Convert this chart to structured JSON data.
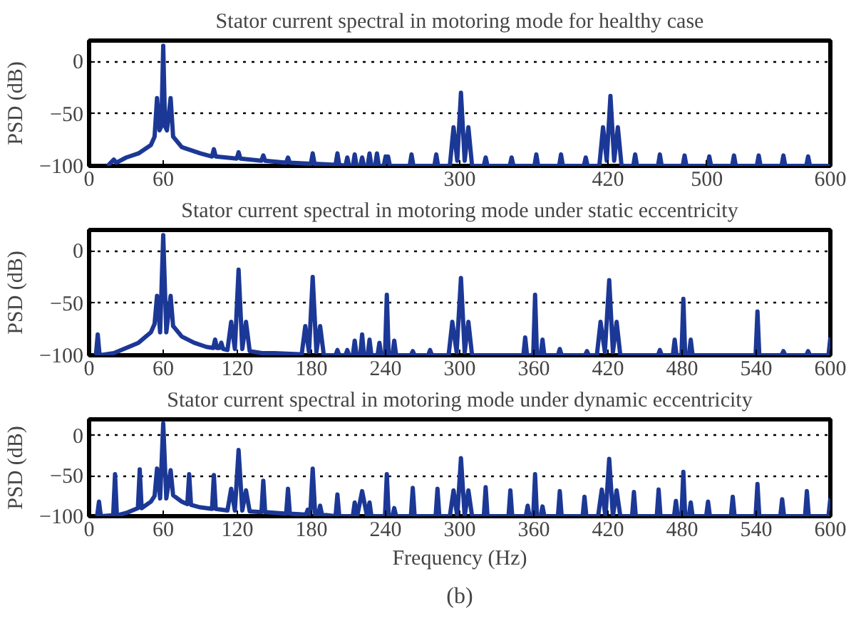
{
  "chart_data": [
    {
      "type": "line",
      "title": "Stator current spectral in motoring mode for healthy case",
      "ylabel": "PSD (dB)",
      "xlim": [
        0,
        600
      ],
      "ylim": [
        -100,
        20
      ],
      "xticks": [
        0,
        60,
        300,
        420,
        500,
        600
      ],
      "yticks": [
        -100,
        -50,
        0
      ],
      "grid": "y",
      "marker": "none",
      "line_style": "solid",
      "series": [
        {
          "color": "#1c3896",
          "x": [
            15,
            20,
            22,
            30,
            40,
            50,
            53,
            55,
            57,
            58.5,
            60,
            61.5,
            63,
            66,
            68,
            75,
            90,
            99.5,
            101,
            102.5,
            119.5,
            121,
            122.5,
            139.5,
            141,
            142.5,
            159.5,
            161,
            162.5,
            179.5,
            181,
            182.5,
            199.5,
            201,
            202.5,
            207.5,
            209,
            210.5,
            213.5,
            215,
            216.5,
            219.5,
            221,
            222.5,
            225.5,
            227,
            228.5,
            231.5,
            233,
            234.5,
            238.5,
            240,
            241,
            242,
            243.5,
            259.5,
            261,
            262.5,
            279.5,
            281,
            282.5,
            292,
            295,
            298,
            301,
            304,
            307,
            310,
            319.5,
            321,
            322.5,
            340.5,
            342,
            343.5,
            360.5,
            362,
            363.5,
            380.5,
            382,
            383.5,
            400.5,
            402,
            403.5,
            413,
            416,
            419,
            422,
            425,
            428,
            431,
            440.5,
            442,
            443.5,
            460.5,
            462,
            463.5,
            480.5,
            482,
            483.5,
            500.5,
            502,
            503.5,
            520.5,
            522,
            523.5,
            540.5,
            542,
            543.5,
            560.5,
            562,
            563.5,
            580.5,
            582,
            583.5,
            600
          ],
          "values": [
            -100,
            -94,
            -97,
            -92,
            -88,
            -80,
            -72,
            -35,
            -66,
            -62,
            15,
            -62,
            -66,
            -35,
            -72,
            -82,
            -88,
            -91,
            -84,
            -91,
            -93,
            -87,
            -93,
            -95,
            -90,
            -95,
            -97,
            -92,
            -97,
            -98,
            -88,
            -98,
            -99,
            -88,
            -99,
            -100,
            -92,
            -100,
            -100,
            -89,
            -100,
            -100,
            -92,
            -100,
            -100,
            -88,
            -100,
            -100,
            -88,
            -100,
            -100,
            -91,
            -96,
            -91,
            -100,
            -100,
            -89,
            -100,
            -100,
            -89,
            -100,
            -100,
            -63,
            -95,
            -30,
            -95,
            -63,
            -100,
            -100,
            -92,
            -100,
            -100,
            -92,
            -100,
            -100,
            -89,
            -100,
            -100,
            -89,
            -100,
            -100,
            -92,
            -100,
            -100,
            -63,
            -95,
            -33,
            -95,
            -63,
            -100,
            -100,
            -89,
            -100,
            -100,
            -89,
            -100,
            -100,
            -90,
            -100,
            -100,
            -91,
            -100,
            -100,
            -90,
            -100,
            -100,
            -90,
            -100,
            -100,
            -90,
            -100,
            -100,
            -91,
            -100,
            -100
          ]
        }
      ]
    },
    {
      "type": "line",
      "title": "Stator current spectral in motoring mode under static eccentricity",
      "ylabel": "PSD (dB)",
      "xlim": [
        0,
        600
      ],
      "ylim": [
        -100,
        20
      ],
      "xticks": [
        0,
        60,
        120,
        180,
        240,
        300,
        360,
        420,
        480,
        540,
        600
      ],
      "yticks": [
        -100,
        -50,
        0
      ],
      "grid": "y",
      "marker": "none",
      "line_style": "solid",
      "series": [
        {
          "color": "#1c3896",
          "x": [
            4,
            5.5,
            7,
            8.5,
            20,
            30,
            40,
            50,
            53,
            55,
            57.5,
            60,
            62.5,
            66,
            68,
            75,
            85,
            95,
            100.5,
            102,
            103.5,
            105.5,
            107,
            108.5,
            112,
            115,
            118,
            121,
            124,
            127,
            130,
            140,
            150,
            170,
            172,
            175,
            178,
            181,
            184,
            187,
            190,
            199.5,
            201,
            202.5,
            207.5,
            209,
            210.5,
            213.5,
            215,
            216.5,
            219.5,
            221,
            222.5,
            225.5,
            227,
            228.5,
            233.5,
            235,
            236.5,
            239.5,
            241,
            242.5,
            245.5,
            247,
            248.5,
            260.5,
            262,
            263.5,
            274.5,
            276,
            277.5,
            291,
            294,
            297.5,
            301,
            304,
            307,
            310,
            351.5,
            353,
            354.5,
            359.5,
            361,
            362.5,
            365.5,
            367,
            368.5,
            379.5,
            381,
            382.5,
            401.5,
            403,
            404.5,
            411,
            414,
            417.5,
            421,
            424,
            427,
            430,
            460.5,
            462,
            463.5,
            472.5,
            474,
            475.5,
            479.5,
            481,
            482.5,
            485.5,
            487,
            488.5,
            539.5,
            541,
            542.5,
            560.5,
            562,
            563.5,
            580.5,
            582,
            583.5,
            598.5,
            600
          ],
          "values": [
            -100,
            -100,
            -80,
            -100,
            -98,
            -93,
            -88,
            -78,
            -70,
            -43,
            -78,
            15,
            -78,
            -43,
            -72,
            -82,
            -88,
            -92,
            -93,
            -85,
            -93,
            -93,
            -88,
            -94,
            -95,
            -68,
            -94,
            -18,
            -94,
            -68,
            -96,
            -98,
            -98,
            -99,
            -100,
            -72,
            -97,
            -25,
            -97,
            -72,
            -100,
            -100,
            -95,
            -100,
            -100,
            -95,
            -100,
            -100,
            -86,
            -100,
            -100,
            -80,
            -100,
            -100,
            -85,
            -100,
            -100,
            -88,
            -100,
            -100,
            -42,
            -100,
            -100,
            -86,
            -100,
            -100,
            -96,
            -100,
            -100,
            -95,
            -100,
            -100,
            -68,
            -97,
            -26,
            -97,
            -68,
            -100,
            -100,
            -83,
            -100,
            -100,
            -42,
            -100,
            -100,
            -85,
            -100,
            -100,
            -94,
            -100,
            -100,
            -96,
            -100,
            -100,
            -68,
            -97,
            -28,
            -97,
            -68,
            -100,
            -100,
            -95,
            -100,
            -100,
            -85,
            -100,
            -100,
            -46,
            -100,
            -100,
            -85,
            -100,
            -100,
            -58,
            -100,
            -100,
            -96,
            -100,
            -100,
            -96,
            -100,
            -100,
            -83
          ]
        }
      ]
    },
    {
      "type": "line",
      "title": "Stator current spectral in motoring mode under dynamic eccentricity",
      "xlabel": "Frequency (Hz)",
      "ylabel": "PSD (dB)",
      "annotations": [
        "(b)"
      ],
      "xlim": [
        0,
        600
      ],
      "ylim": [
        -100,
        20
      ],
      "xticks": [
        0,
        60,
        120,
        180,
        240,
        300,
        360,
        420,
        480,
        540,
        600
      ],
      "yticks": [
        -100,
        -50,
        0
      ],
      "grid": "y",
      "marker": "none",
      "line_style": "solid",
      "series": [
        {
          "color": "#1c3896",
          "x": [
            6.5,
            8,
            9.5,
            19.5,
            21,
            22.5,
            30,
            39.5,
            41,
            42.5,
            50,
            53,
            55,
            57.5,
            60,
            62.5,
            66,
            68,
            75,
            79.5,
            81,
            82.5,
            90,
            99.5,
            101,
            102.5,
            112,
            115,
            118,
            121,
            124,
            127,
            130,
            139.5,
            141,
            142.5,
            159.5,
            161,
            162.5,
            175.5,
            177,
            179,
            181,
            183,
            185.5,
            187,
            188.5,
            199.5,
            201,
            202.5,
            213.5,
            215,
            217,
            221,
            225,
            227,
            228.5,
            239.5,
            241,
            242.5,
            245.5,
            247,
            248.5,
            260.5,
            262,
            263.5,
            280.5,
            282,
            283.5,
            292,
            295,
            298,
            301,
            304,
            307,
            310,
            319.5,
            321,
            322.5,
            339.5,
            341,
            342.5,
            353.5,
            355,
            356.5,
            359.5,
            361,
            362.5,
            365.5,
            367,
            368.5,
            379.5,
            381,
            382.5,
            399.5,
            401,
            402.5,
            412,
            415,
            418,
            421,
            424,
            427,
            430,
            439.5,
            441,
            442.5,
            459.5,
            461,
            462.5,
            473.5,
            475,
            476.5,
            479.5,
            481,
            482.5,
            485.5,
            487,
            488.5,
            499.5,
            501,
            502.5,
            519.5,
            521,
            522.5,
            539.5,
            541,
            542.5,
            559.5,
            561,
            562.5,
            579.5,
            581,
            582.5,
            598.5,
            600
          ],
          "values": [
            -100,
            -82,
            -100,
            -99,
            -48,
            -99,
            -96,
            -90,
            -42,
            -90,
            -82,
            -75,
            -41,
            -78,
            15,
            -78,
            -43,
            -74,
            -82,
            -85,
            -48,
            -86,
            -89,
            -91,
            -49,
            -91,
            -93,
            -66,
            -93,
            -18,
            -93,
            -68,
            -94,
            -95,
            -56,
            -95,
            -97,
            -66,
            -97,
            -98,
            -92,
            -98,
            -41,
            -98,
            -98,
            -87,
            -98,
            -100,
            -73,
            -100,
            -100,
            -83,
            -100,
            -69,
            -100,
            -83,
            -100,
            -100,
            -48,
            -100,
            -100,
            -90,
            -100,
            -100,
            -65,
            -100,
            -100,
            -66,
            -100,
            -100,
            -68,
            -100,
            -28,
            -100,
            -68,
            -100,
            -100,
            -64,
            -100,
            -100,
            -68,
            -100,
            -100,
            -87,
            -100,
            -100,
            -48,
            -100,
            -100,
            -88,
            -100,
            -100,
            -69,
            -100,
            -100,
            -76,
            -100,
            -100,
            -67,
            -100,
            -29,
            -100,
            -68,
            -100,
            -100,
            -70,
            -100,
            -100,
            -67,
            -100,
            -100,
            -81,
            -100,
            -100,
            -45,
            -100,
            -100,
            -83,
            -100,
            -100,
            -82,
            -100,
            -100,
            -76,
            -100,
            -100,
            -60,
            -100,
            -100,
            -79,
            -100,
            -100,
            -69,
            -100,
            -100,
            -78
          ]
        }
      ]
    }
  ]
}
